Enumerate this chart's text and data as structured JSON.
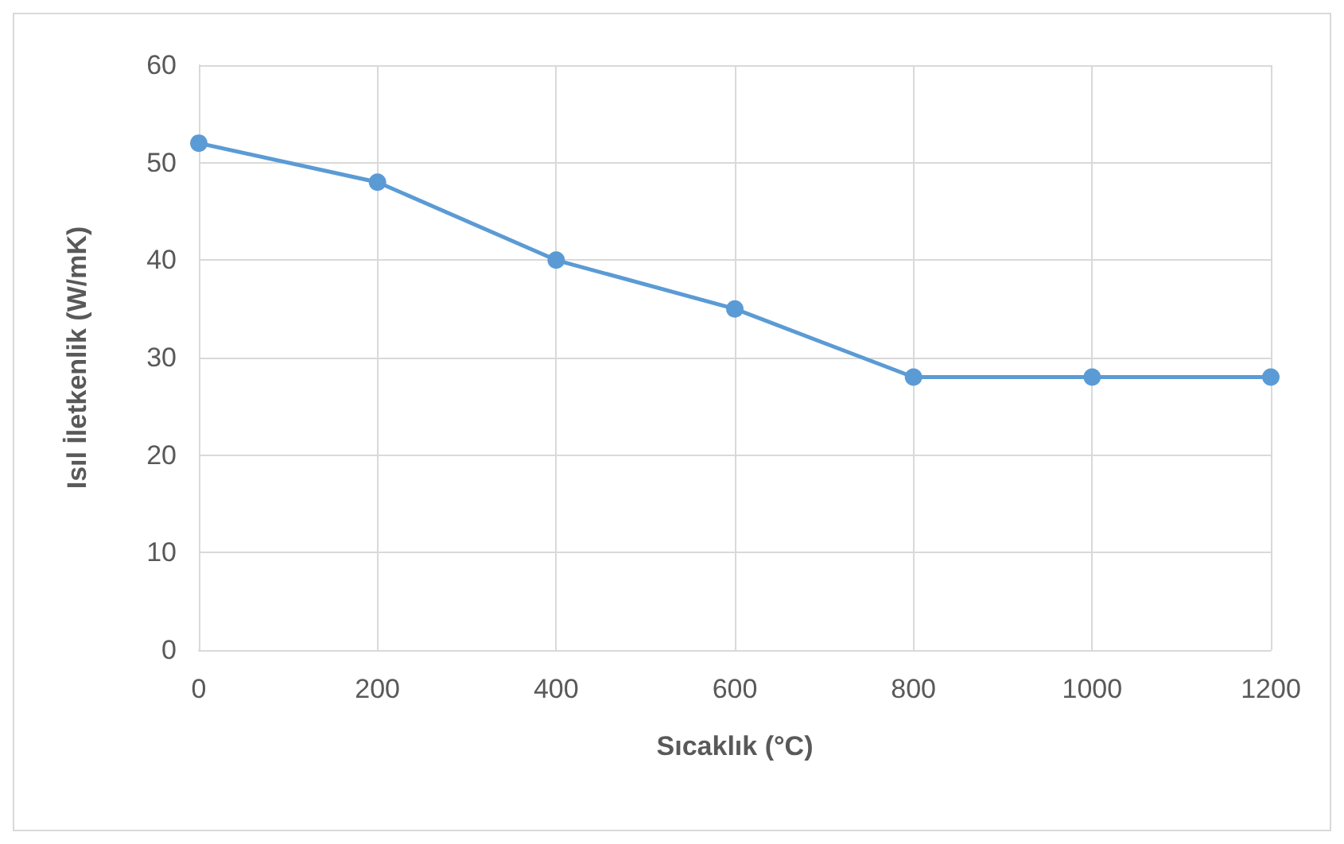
{
  "chart_data": {
    "type": "line",
    "xlabel": "Sıcaklık (°C)",
    "ylabel": "Isıl İletkenlik (W/mK)",
    "x": [
      0,
      200,
      400,
      600,
      800,
      1000,
      1200
    ],
    "series": [
      {
        "color": "#5b9bd5",
        "values": [
          52,
          48,
          40,
          35,
          28,
          28,
          28
        ]
      }
    ],
    "xlim": [
      0,
      1200
    ],
    "xticks": [
      0,
      200,
      400,
      600,
      800,
      1000,
      1200
    ],
    "ylim": [
      0,
      60
    ],
    "yticks": [
      0,
      10,
      20,
      30,
      40,
      50,
      60
    ],
    "grid": true,
    "marker": "circle",
    "line_style": "solid"
  }
}
